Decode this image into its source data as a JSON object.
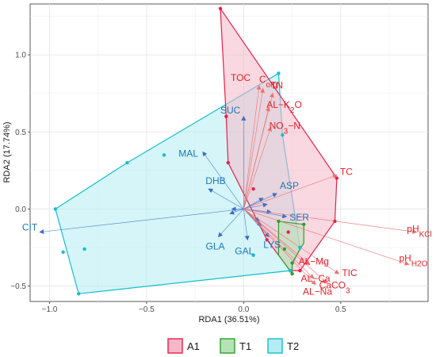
{
  "chart_data": {
    "type": "scatter",
    "xlabel": "RDA1 (36.51%)",
    "ylabel": "RDA2 (17.74%)",
    "xlim": [
      -1.1,
      0.95
    ],
    "ylim": [
      -0.6,
      1.33
    ],
    "x_ticks": [
      -1.0,
      -0.5,
      0.0,
      0.5
    ],
    "y_ticks": [
      -0.5,
      0.0,
      0.5,
      1.0
    ],
    "x_tick_labels": [
      "−1.0",
      "−0.5",
      "0.0",
      "0.5"
    ],
    "y_tick_labels": [
      "−0.5",
      "0.0",
      "0.5",
      "1.0"
    ],
    "grid": true,
    "legend_position": "bottom",
    "groups": [
      {
        "name": "A1",
        "color": "#e8204a",
        "fill": "#f4b8c8",
        "hull": [
          [
            -0.12,
            1.3
          ],
          [
            0.48,
            0.2
          ],
          [
            0.47,
            -0.08
          ],
          [
            0.29,
            -0.4
          ],
          [
            0.24,
            -0.4
          ],
          [
            0.12,
            -0.2
          ],
          [
            -0.08,
            0.3
          ],
          [
            -0.09,
            0.6
          ]
        ],
        "points": [
          [
            -0.12,
            1.3
          ],
          [
            0.48,
            0.2
          ],
          [
            0.47,
            -0.08
          ],
          [
            0.29,
            -0.4
          ],
          [
            0.24,
            -0.4
          ],
          [
            0.12,
            -0.2
          ],
          [
            -0.08,
            0.3
          ],
          [
            -0.09,
            0.6
          ],
          [
            0.05,
            0.13
          ],
          [
            0.23,
            -0.15
          ]
        ]
      },
      {
        "name": "T1",
        "color": "#2ca02c",
        "fill": "#b5e3b5",
        "hull": [
          [
            0.18,
            -0.08
          ],
          [
            0.31,
            -0.1
          ],
          [
            0.31,
            -0.22
          ],
          [
            0.25,
            -0.35
          ],
          [
            0.25,
            -0.42
          ],
          [
            0.18,
            -0.3
          ]
        ],
        "points": [
          [
            0.18,
            -0.08
          ],
          [
            0.31,
            -0.1
          ],
          [
            0.25,
            -0.35
          ],
          [
            0.25,
            -0.42
          ],
          [
            0.21,
            -0.26
          ]
        ]
      },
      {
        "name": "T2",
        "color": "#17becf",
        "fill": "#b3ecf3",
        "hull": [
          [
            -0.6,
            0.3
          ],
          [
            0.18,
            0.88
          ],
          [
            0.2,
            0.48
          ],
          [
            0.29,
            -0.25
          ],
          [
            0.24,
            -0.4
          ],
          [
            -0.85,
            -0.55
          ],
          [
            -0.97,
            0.0
          ]
        ],
        "points": [
          [
            -0.6,
            0.3
          ],
          [
            0.18,
            0.88
          ],
          [
            0.2,
            0.48
          ],
          [
            0.29,
            -0.25
          ],
          [
            0.24,
            -0.4
          ],
          [
            -0.85,
            -0.55
          ],
          [
            -0.97,
            0.0
          ],
          [
            -0.41,
            0.35
          ],
          [
            -0.82,
            -0.26
          ],
          [
            -0.93,
            -0.28
          ],
          [
            0.05,
            -0.3
          ]
        ]
      }
    ],
    "species_arrows": [
      {
        "label": "CIT",
        "x": -1.05,
        "y": -0.15
      },
      {
        "label": "MAL",
        "x": -0.21,
        "y": 0.37
      },
      {
        "label": "SUC",
        "x": 0.0,
        "y": 0.6
      },
      {
        "label": "DHB",
        "x": -0.18,
        "y": 0.13
      },
      {
        "label": "ASP",
        "x": 0.17,
        "y": 0.1
      },
      {
        "label": "SER",
        "x": 0.22,
        "y": -0.05
      },
      {
        "label": "GLA",
        "x": -0.13,
        "y": -0.18
      },
      {
        "label": "GAL",
        "x": 0.02,
        "y": -0.2
      },
      {
        "label": "LYS",
        "x": 0.13,
        "y": -0.18
      },
      {
        "label": "",
        "x": 0.1,
        "y": 0.07
      },
      {
        "label": "",
        "x": 0.12,
        "y": 0.03
      },
      {
        "label": "",
        "x": 0.14,
        "y": -0.02
      },
      {
        "label": "",
        "x": 0.08,
        "y": -0.08
      },
      {
        "label": "",
        "x": -0.06,
        "y": 0.0
      },
      {
        "label": "",
        "x": -0.07,
        "y": -0.03
      },
      {
        "label": "",
        "x": 0.09,
        "y": -0.11
      }
    ],
    "env_arrows": [
      {
        "label": "TOC",
        "sub": "",
        "x": 0.08,
        "y": 0.8
      },
      {
        "label": "C",
        "sub": "org",
        "x": 0.1,
        "y": 0.78
      },
      {
        "label": "TN",
        "sub": "",
        "x": 0.15,
        "y": 0.75
      },
      {
        "label": "AL−K",
        "sub": "2",
        "suffix": "O",
        "x": 0.13,
        "y": 0.66
      },
      {
        "label": "NO",
        "sub": "3",
        "suffix": "−N",
        "x": 0.14,
        "y": 0.53
      },
      {
        "label": "TC",
        "sub": "",
        "x": 0.48,
        "y": 0.22
      },
      {
        "label": "pH",
        "sub": "KCl",
        "x": 0.89,
        "y": -0.15
      },
      {
        "label": "pH",
        "sub": "H2O",
        "x": 0.85,
        "y": -0.36
      },
      {
        "label": "AL−Mg",
        "sub": "",
        "x": 0.34,
        "y": -0.36
      },
      {
        "label": "TIC",
        "sub": "",
        "x": 0.49,
        "y": -0.42
      },
      {
        "label": "AL−Ca",
        "sub": "",
        "x": 0.36,
        "y": -0.45
      },
      {
        "label": "CaCO",
        "sub": "3",
        "x": 0.43,
        "y": -0.48
      },
      {
        "label": "AL−Na",
        "sub": "",
        "x": 0.37,
        "y": -0.49
      }
    ]
  },
  "legend": {
    "items": [
      {
        "label": "A1",
        "color": "#e8204a",
        "fill": "#f4b8c8"
      },
      {
        "label": "T1",
        "color": "#2ca02c",
        "fill": "#b5e3b5"
      },
      {
        "label": "T2",
        "color": "#17becf",
        "fill": "#b3ecf3"
      }
    ]
  }
}
